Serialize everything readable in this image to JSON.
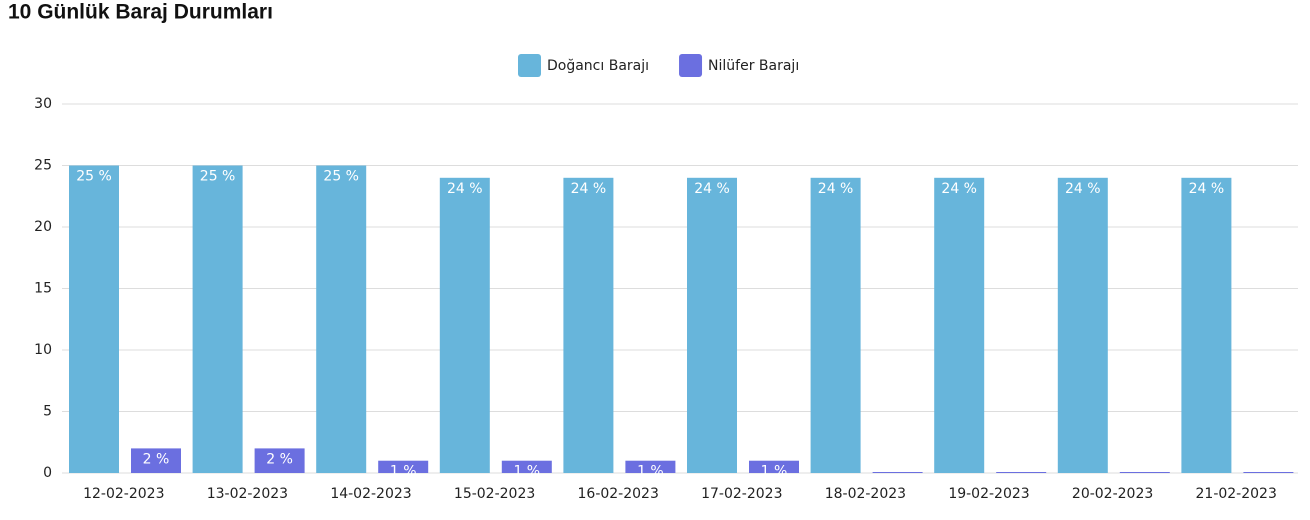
{
  "chart_data": {
    "type": "bar",
    "title": "10 Günlük Baraj Durumları",
    "categories": [
      "12-02-2023",
      "13-02-2023",
      "14-02-2023",
      "15-02-2023",
      "16-02-2023",
      "17-02-2023",
      "18-02-2023",
      "19-02-2023",
      "20-02-2023",
      "21-02-2023"
    ],
    "series": [
      {
        "name": "Doğancı Barajı",
        "color": "#67b5db",
        "values": [
          25,
          25,
          25,
          24,
          24,
          24,
          24,
          24,
          24,
          24
        ],
        "value_labels": [
          "25 %",
          "25 %",
          "25 %",
          "24 %",
          "24 %",
          "24 %",
          "24 %",
          "24 %",
          "24 %",
          "24 %"
        ]
      },
      {
        "name": "Nilüfer Barajı",
        "color": "#6b6fe0",
        "values": [
          2,
          2,
          1,
          1,
          1,
          1,
          0,
          0,
          0,
          0
        ],
        "value_labels": [
          "2 %",
          "2 %",
          "1 %",
          "1 %",
          "1 %",
          "1 %",
          null,
          null,
          null,
          null
        ]
      }
    ],
    "ylim": [
      0,
      30
    ],
    "yticks": [
      0,
      5,
      10,
      15,
      20,
      25,
      30
    ],
    "grid": true
  }
}
